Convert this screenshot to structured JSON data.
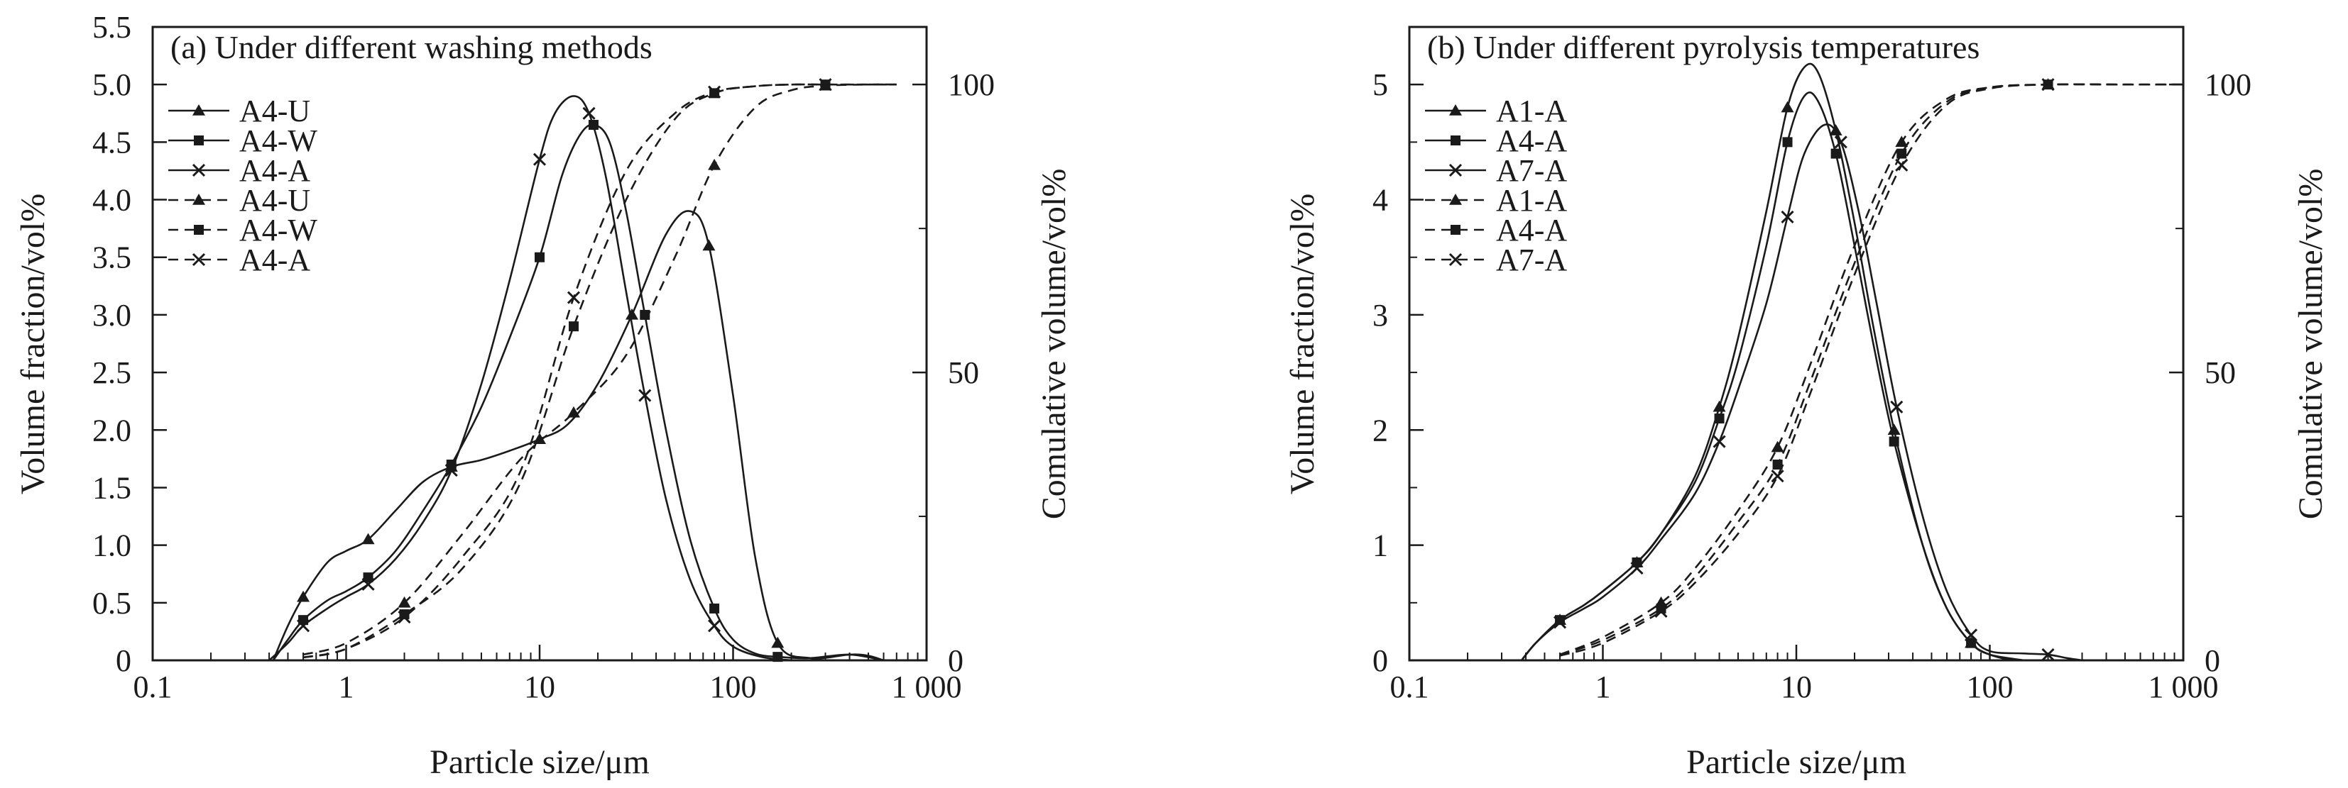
{
  "chart_data": [
    {
      "type": "line",
      "title": "(a) Under different washing methods",
      "xlabel": "Particle size/μm",
      "ylabel": "Volume fraction/vol%",
      "y2label": "Comulative volume/vol%",
      "xscale": "log",
      "xlim": [
        0.1,
        1000
      ],
      "ylim": [
        0,
        5.5
      ],
      "y2lim": [
        0,
        110
      ],
      "xticks": [
        0.1,
        1,
        10,
        100,
        1000
      ],
      "xtick_labels": [
        "0.1",
        "1",
        "10",
        "100",
        "1 000"
      ],
      "yticks": [
        0,
        0.5,
        1.0,
        1.5,
        2.0,
        2.5,
        3.0,
        3.5,
        4.0,
        4.5,
        5.0,
        5.5
      ],
      "ytick_labels": [
        "0",
        "0.5",
        "1.0",
        "1.5",
        "2.0",
        "2.5",
        "3.0",
        "3.5",
        "4.0",
        "4.5",
        "5.0",
        "5.5"
      ],
      "y2ticks": [
        0,
        50,
        100
      ],
      "y2tick_labels": [
        "0",
        "50",
        "100"
      ],
      "grid": false,
      "legend_position": "top-left",
      "series": [
        {
          "name": "A4-U",
          "axis": "left",
          "style": "solid",
          "marker": "triangle",
          "x": [
            0.42,
            0.5,
            0.6,
            0.8,
            1.0,
            1.3,
            1.8,
            2.5,
            3.5,
            5,
            7,
            10,
            14,
            20,
            30,
            45,
            60,
            75,
            100,
            130,
            170,
            250,
            400,
            500,
            600
          ],
          "y": [
            0,
            0.3,
            0.55,
            0.85,
            0.95,
            1.05,
            1.3,
            1.55,
            1.68,
            1.74,
            1.82,
            1.92,
            2.05,
            2.4,
            3.0,
            3.7,
            3.9,
            3.6,
            2.3,
            0.9,
            0.15,
            0.02,
            0.05,
            0.04,
            0
          ]
        },
        {
          "name": "A4-W",
          "axis": "left",
          "style": "solid",
          "marker": "square",
          "x": [
            0.42,
            0.5,
            0.6,
            0.8,
            1.0,
            1.3,
            1.8,
            2.5,
            3.5,
            5,
            7,
            10,
            13,
            16,
            19,
            23,
            28,
            35,
            45,
            60,
            80,
            100,
            130,
            170,
            250,
            400,
            600
          ],
          "y": [
            0,
            0.18,
            0.35,
            0.52,
            0.6,
            0.72,
            0.95,
            1.3,
            1.7,
            2.2,
            2.8,
            3.5,
            4.2,
            4.55,
            4.65,
            4.5,
            3.9,
            3.0,
            2.0,
            1.05,
            0.45,
            0.18,
            0.06,
            0.03,
            0.02,
            0.05,
            0
          ]
        },
        {
          "name": "A4-A",
          "axis": "left",
          "style": "solid",
          "marker": "x",
          "x": [
            0.4,
            0.5,
            0.6,
            0.8,
            1.0,
            1.3,
            1.8,
            2.5,
            3.5,
            5,
            7,
            10,
            12,
            15,
            18,
            22,
            28,
            35,
            45,
            60,
            80,
            100,
            140,
            200
          ],
          "y": [
            0,
            0.15,
            0.3,
            0.45,
            0.55,
            0.66,
            0.88,
            1.2,
            1.65,
            2.4,
            3.3,
            4.35,
            4.75,
            4.9,
            4.75,
            4.2,
            3.2,
            2.3,
            1.4,
            0.7,
            0.3,
            0.12,
            0.03,
            0
          ]
        },
        {
          "name": "A4-U",
          "axis": "right",
          "style": "dashed",
          "marker": "triangle",
          "x": [
            0.6,
            1,
            2,
            4,
            8,
            15,
            28,
            50,
            80,
            130,
            200,
            300,
            500,
            700
          ],
          "y": [
            1,
            3,
            10,
            22,
            35,
            43,
            53,
            70,
            86,
            96,
            99,
            99.8,
            100,
            100
          ]
        },
        {
          "name": "A4-W",
          "axis": "right",
          "style": "dashed",
          "marker": "square",
          "x": [
            0.6,
            1,
            2,
            4,
            8,
            15,
            28,
            50,
            80,
            130,
            200,
            300,
            500,
            700
          ],
          "y": [
            0.5,
            2,
            8,
            16,
            31,
            58,
            80,
            94,
            98.5,
            99.7,
            100,
            100,
            100,
            100
          ]
        },
        {
          "name": "A4-A",
          "axis": "right",
          "style": "dashed",
          "marker": "x",
          "x": [
            0.6,
            1,
            2,
            4,
            8,
            15,
            28,
            50,
            80,
            130,
            200,
            300,
            500,
            700
          ],
          "y": [
            0.5,
            2,
            7.5,
            18,
            33,
            63,
            85,
            95,
            98.7,
            99.7,
            100,
            100,
            100,
            100
          ]
        }
      ]
    },
    {
      "type": "line",
      "title": "(b) Under different pyrolysis temperatures",
      "xlabel": "Particle size/μm",
      "ylabel": "Volume fraction/vol%",
      "y2label": "Comulative volume/vol%",
      "xscale": "log",
      "xlim": [
        0.1,
        1000
      ],
      "ylim": [
        0,
        5.5
      ],
      "y2lim": [
        0,
        110
      ],
      "xticks": [
        0.1,
        1,
        10,
        100,
        1000
      ],
      "xtick_labels": [
        "0.1",
        "1",
        "10",
        "100",
        "1 000"
      ],
      "yticks": [
        0,
        1,
        2,
        3,
        4,
        5
      ],
      "ytick_labels": [
        "0",
        "1",
        "2",
        "3",
        "4",
        "5"
      ],
      "y2ticks": [
        0,
        50,
        100
      ],
      "y2tick_labels": [
        "0",
        "50",
        "100"
      ],
      "grid": false,
      "legend_position": "top-left",
      "series": [
        {
          "name": "A1-A",
          "axis": "left",
          "style": "solid",
          "marker": "triangle",
          "x": [
            0.38,
            0.45,
            0.6,
            0.8,
            1.0,
            1.5,
            2,
            3,
            4,
            5,
            7,
            9,
            11,
            13,
            16,
            20,
            25,
            32,
            45,
            60,
            80,
            100,
            130
          ],
          "y": [
            0,
            0.15,
            0.35,
            0.48,
            0.6,
            0.85,
            1.1,
            1.6,
            2.2,
            2.8,
            3.9,
            4.8,
            5.15,
            5.1,
            4.6,
            3.8,
            2.9,
            2.0,
            1.0,
            0.45,
            0.15,
            0.05,
            0
          ]
        },
        {
          "name": "A4-A",
          "axis": "left",
          "style": "solid",
          "marker": "square",
          "x": [
            0.38,
            0.45,
            0.6,
            0.8,
            1.0,
            1.5,
            2,
            3,
            4,
            5,
            7,
            9,
            11,
            13,
            16,
            20,
            25,
            32,
            45,
            60,
            80,
            100,
            150
          ],
          "y": [
            0,
            0.15,
            0.35,
            0.48,
            0.6,
            0.85,
            1.1,
            1.55,
            2.1,
            2.6,
            3.6,
            4.5,
            4.9,
            4.85,
            4.4,
            3.6,
            2.75,
            1.9,
            1.0,
            0.45,
            0.15,
            0.05,
            0
          ]
        },
        {
          "name": "A7-A",
          "axis": "left",
          "style": "solid",
          "marker": "x",
          "x": [
            0.38,
            0.45,
            0.6,
            0.8,
            1.0,
            1.5,
            2,
            3,
            4,
            5,
            7,
            9,
            11,
            14,
            17,
            21,
            26,
            33,
            45,
            60,
            80,
            100,
            150,
            200,
            250,
            300
          ],
          "y": [
            0,
            0.15,
            0.33,
            0.45,
            0.55,
            0.8,
            1.05,
            1.45,
            1.9,
            2.35,
            3.1,
            3.85,
            4.4,
            4.65,
            4.5,
            3.9,
            3.1,
            2.2,
            1.25,
            0.6,
            0.22,
            0.08,
            0.06,
            0.05,
            0.02,
            0
          ]
        },
        {
          "name": "A1-A",
          "axis": "right",
          "style": "dashed",
          "marker": "triangle",
          "x": [
            0.6,
            1,
            2,
            3,
            5,
            8,
            12,
            20,
            35,
            60,
            100,
            200,
            500,
            1000
          ],
          "y": [
            1,
            4,
            10,
            16,
            26,
            37,
            52,
            72,
            90,
            97.5,
            99.5,
            100,
            100,
            100
          ]
        },
        {
          "name": "A4-A",
          "axis": "right",
          "style": "dashed",
          "marker": "square",
          "x": [
            0.6,
            1,
            2,
            3,
            5,
            8,
            12,
            20,
            35,
            60,
            100,
            200,
            500,
            1000
          ],
          "y": [
            1,
            3.5,
            9,
            14.5,
            24,
            34,
            49,
            69,
            88,
            97,
            99.5,
            100,
            100,
            100
          ]
        },
        {
          "name": "A7-A",
          "axis": "right",
          "style": "dashed",
          "marker": "x",
          "x": [
            0.6,
            1,
            2,
            3,
            5,
            8,
            12,
            20,
            35,
            60,
            100,
            200,
            500,
            1000
          ],
          "y": [
            0.8,
            3,
            8.5,
            13.5,
            22,
            32,
            47,
            67,
            86,
            96.5,
            99.3,
            100,
            100,
            100
          ]
        }
      ]
    }
  ]
}
